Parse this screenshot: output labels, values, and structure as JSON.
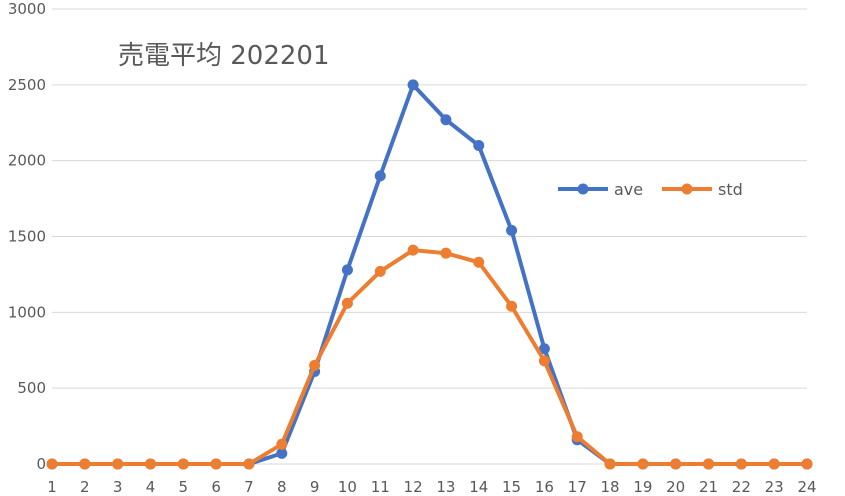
{
  "chart_data": {
    "type": "line",
    "title": "売電平均 202201",
    "xlabel": "",
    "ylabel": "",
    "x": [
      1,
      2,
      3,
      4,
      5,
      6,
      7,
      8,
      9,
      10,
      11,
      12,
      13,
      14,
      15,
      16,
      17,
      18,
      19,
      20,
      21,
      22,
      23,
      24
    ],
    "ylim": [
      0,
      3000
    ],
    "yticks": [
      0,
      500,
      1000,
      1500,
      2000,
      2500,
      3000
    ],
    "grid": true,
    "legend_position": "right",
    "series": [
      {
        "name": "ave",
        "color": "#4472c4",
        "values": [
          0,
          0,
          0,
          0,
          0,
          0,
          0,
          70,
          610,
          1280,
          1900,
          2500,
          2270,
          2100,
          1540,
          760,
          160,
          0,
          0,
          0,
          0,
          0,
          0,
          0
        ]
      },
      {
        "name": "std",
        "color": "#ed7d31",
        "values": [
          0,
          0,
          0,
          0,
          0,
          0,
          0,
          130,
          650,
          1060,
          1270,
          1410,
          1390,
          1330,
          1040,
          680,
          180,
          0,
          0,
          0,
          0,
          0,
          0,
          0
        ]
      }
    ]
  }
}
